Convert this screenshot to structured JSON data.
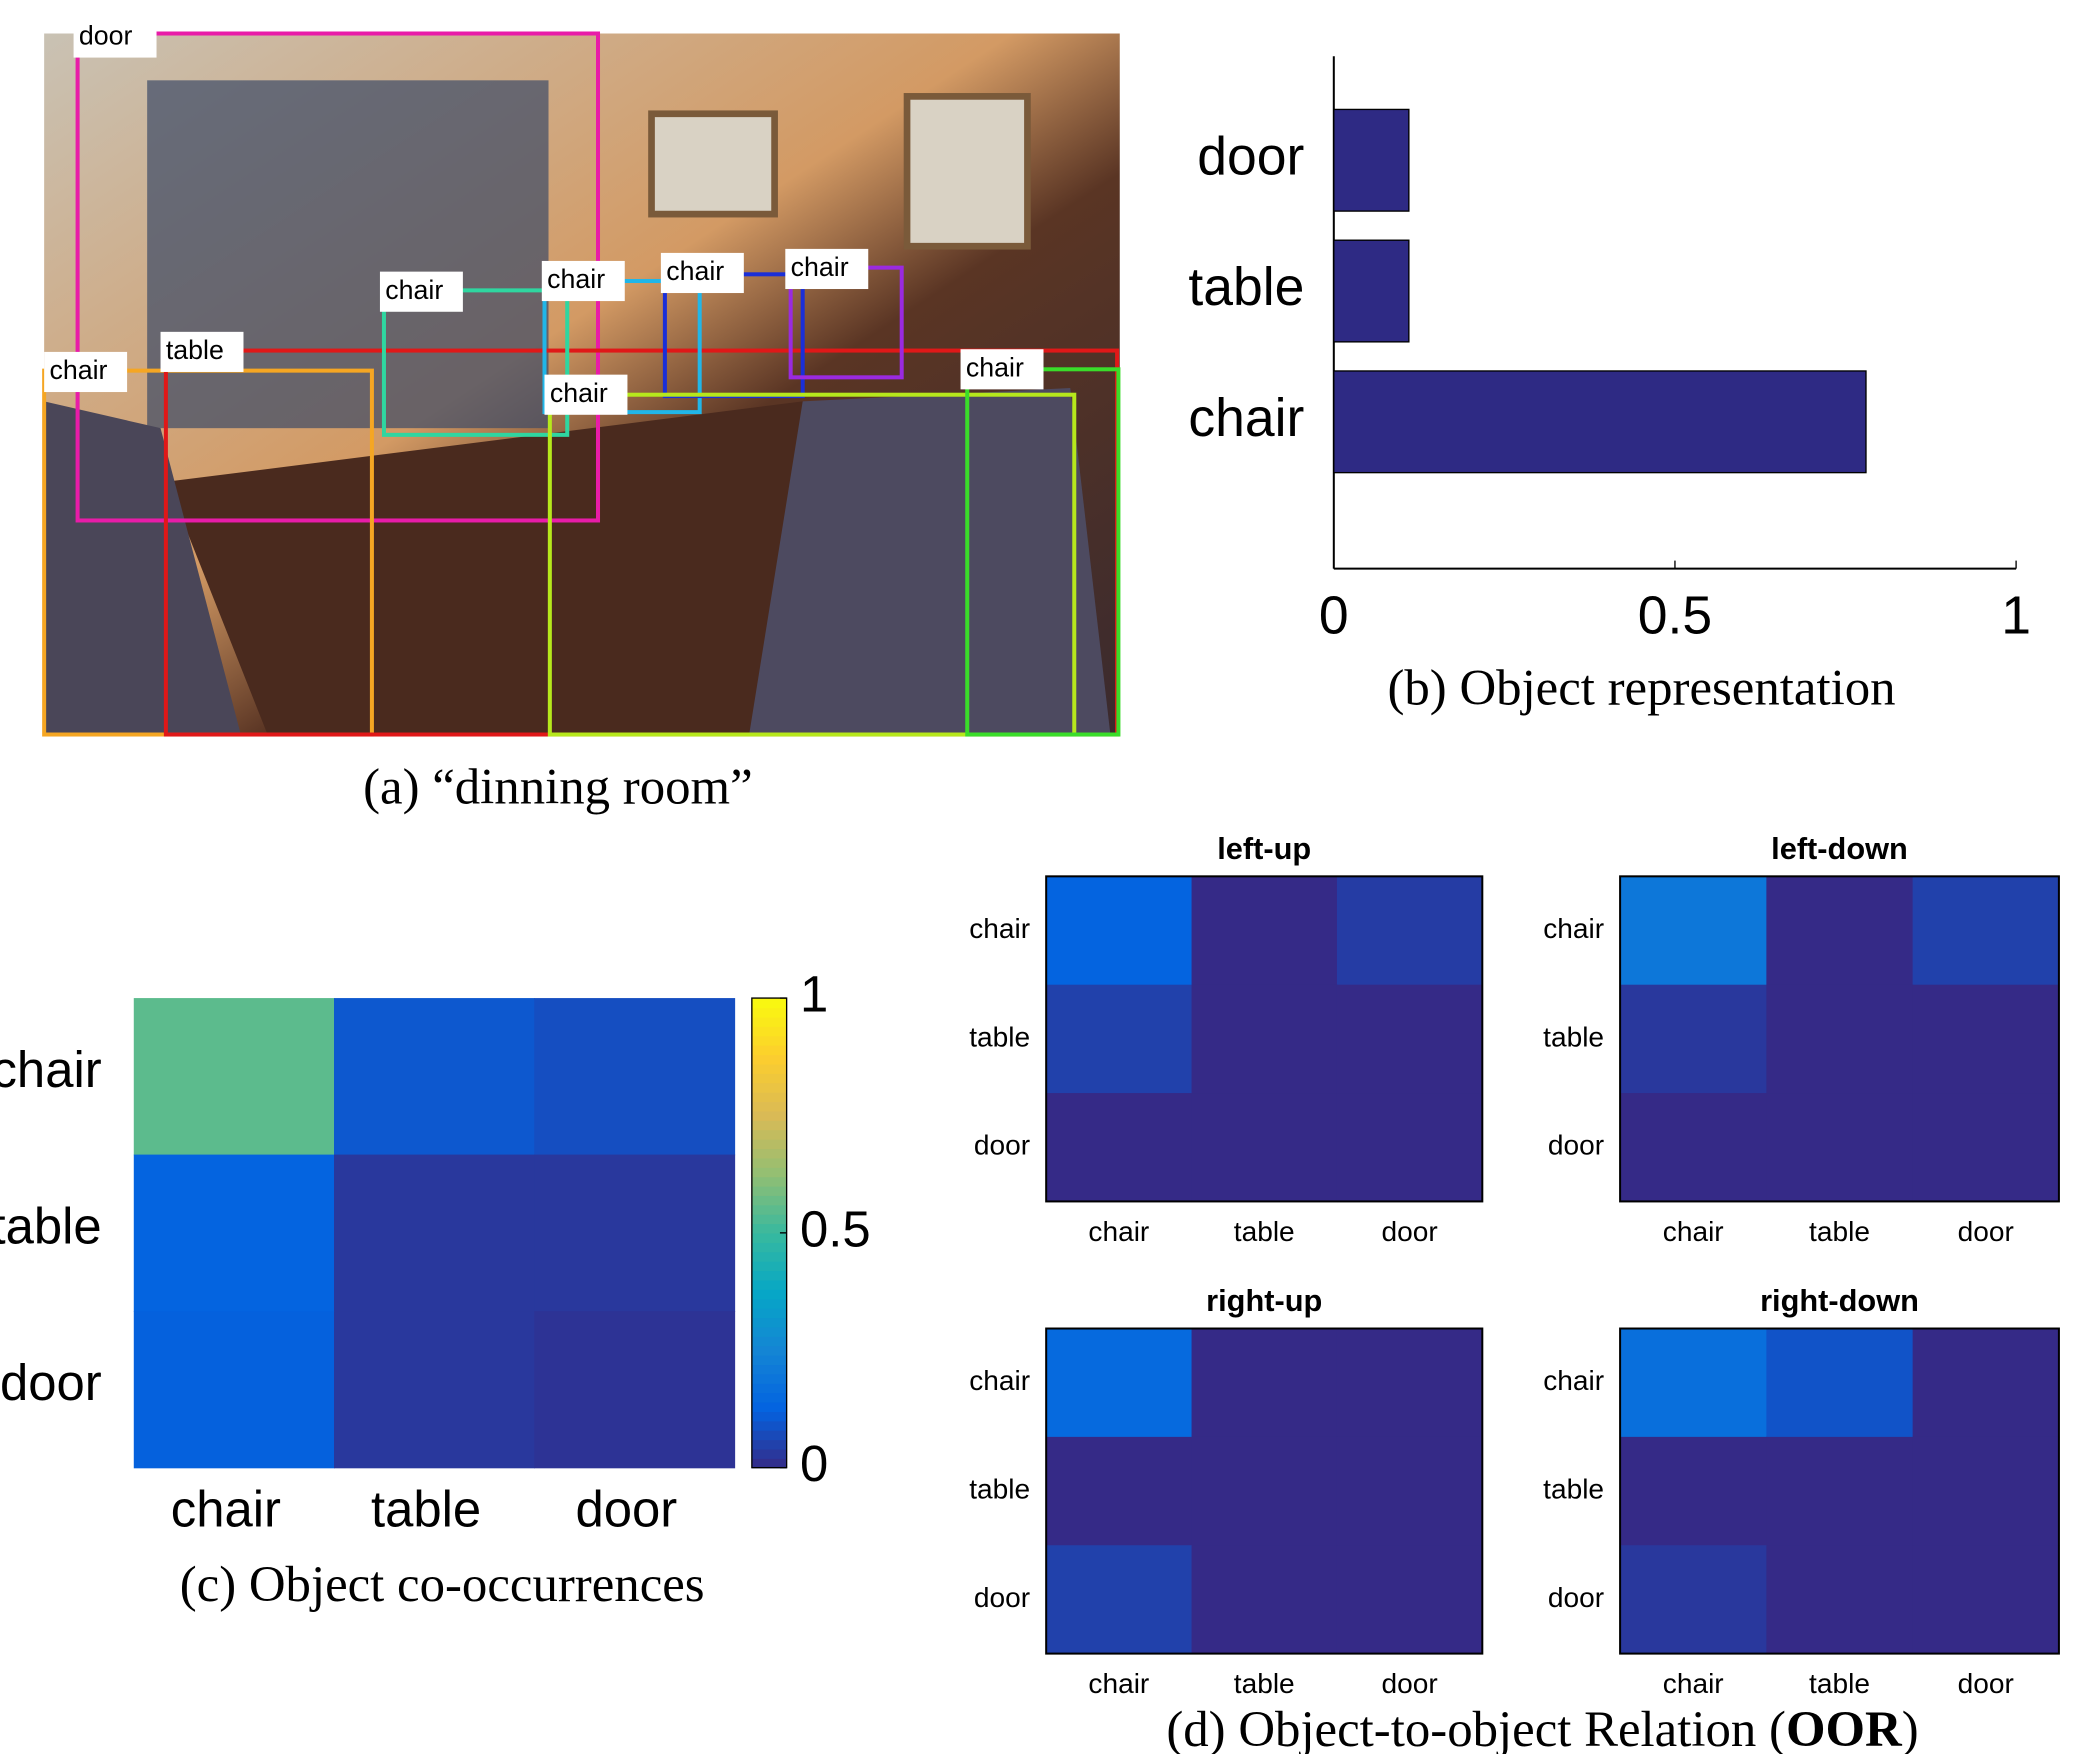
{
  "photo": {
    "caption": "(a) “dinning room”",
    "boxes": [
      {
        "label": "door",
        "color": "#e81ca8"
      },
      {
        "label": "chair",
        "color": "#f5a623"
      },
      {
        "label": "table",
        "color": "#e01818"
      },
      {
        "label": "chair",
        "color": "#2fd6a0"
      },
      {
        "label": "chair",
        "color": "#21b6e8"
      },
      {
        "label": "chair",
        "color": "#1a2fd8"
      },
      {
        "label": "chair",
        "color": "#9a2ae0"
      },
      {
        "label": "chair",
        "color": "#b6e81c"
      },
      {
        "label": "chair",
        "color": "#3add2a"
      }
    ]
  },
  "chart_data": [
    {
      "type": "bar",
      "orientation": "horizontal",
      "caption": "(b) Object representation",
      "categories": [
        "door",
        "table",
        "chair"
      ],
      "values": [
        0.11,
        0.11,
        0.78
      ],
      "color": "#2e2a84",
      "xlim": [
        0,
        1
      ],
      "xticks": [
        0,
        0.5,
        1
      ]
    },
    {
      "type": "heatmap",
      "caption": "(c) Object co-occurrences",
      "rows": [
        "chair",
        "table",
        "door"
      ],
      "columns": [
        "chair",
        "table",
        "door"
      ],
      "values": [
        [
          0.55,
          0.1,
          0.08
        ],
        [
          0.13,
          0.03,
          0.03
        ],
        [
          0.12,
          0.03,
          0.02
        ]
      ],
      "clim": [
        0,
        1
      ],
      "colorbar_ticks": [
        0,
        0.5,
        1
      ],
      "colormap": "parula"
    },
    {
      "type": "heatmap",
      "title": "left-up",
      "rows": [
        "chair",
        "table",
        "door"
      ],
      "columns": [
        "chair",
        "table",
        "door"
      ],
      "values": [
        [
          0.13,
          0,
          0.04
        ],
        [
          0.05,
          0,
          0
        ],
        [
          0,
          0,
          0
        ]
      ],
      "clim": [
        0,
        1
      ],
      "colormap": "parula"
    },
    {
      "type": "heatmap",
      "title": "left-down",
      "rows": [
        "chair",
        "table",
        "door"
      ],
      "columns": [
        "chair",
        "table",
        "door"
      ],
      "values": [
        [
          0.2,
          0,
          0.05
        ],
        [
          0.03,
          0,
          0
        ],
        [
          0,
          0,
          0
        ]
      ],
      "clim": [
        0,
        1
      ],
      "colormap": "parula"
    },
    {
      "type": "heatmap",
      "title": "right-up",
      "rows": [
        "chair",
        "table",
        "door"
      ],
      "columns": [
        "chair",
        "table",
        "door"
      ],
      "values": [
        [
          0.15,
          0,
          0
        ],
        [
          0,
          0,
          0
        ],
        [
          0.05,
          0,
          0
        ]
      ],
      "clim": [
        0,
        1
      ],
      "colormap": "parula"
    },
    {
      "type": "heatmap",
      "title": "right-down",
      "rows": [
        "chair",
        "table",
        "door"
      ],
      "columns": [
        "chair",
        "table",
        "door"
      ],
      "values": [
        [
          0.17,
          0.09,
          0
        ],
        [
          0,
          0,
          0
        ],
        [
          0.03,
          0,
          0
        ]
      ],
      "clim": [
        0,
        1
      ],
      "colormap": "parula"
    }
  ],
  "caption_d": {
    "before": "(d) Object-to-object Relation (",
    "bold": "OOR",
    "after": ")"
  }
}
